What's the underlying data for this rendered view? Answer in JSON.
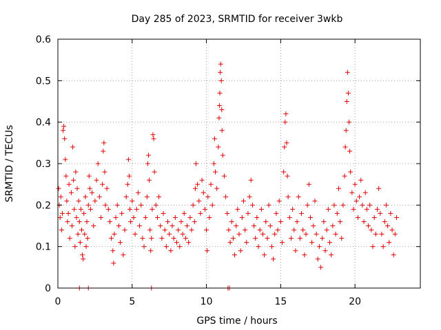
{
  "chart_data": {
    "type": "scatter",
    "title": "Day 285 of 2023, SRMTID for receiver 3wkb",
    "xlabel": "GPS time / hours",
    "ylabel": "SRMTID / TECUs",
    "xlim": [
      0,
      24.4
    ],
    "ylim": [
      0,
      0.6
    ],
    "xticks": [
      0,
      5,
      10,
      15,
      20
    ],
    "xtick_labels": [
      "0",
      "5",
      "10",
      "15",
      "20"
    ],
    "yticks": [
      0,
      0.1,
      0.2,
      0.3,
      0.4,
      0.5,
      0.6
    ],
    "ytick_labels": [
      "0",
      "0.1",
      "0.2",
      "0.3",
      "0.4",
      "0.5",
      "0.6"
    ],
    "grid": true,
    "marker": "+",
    "color": "#e00000",
    "series": [
      {
        "name": "SRMTID",
        "points": [
          [
            0.05,
            0.24
          ],
          [
            0.1,
            0.2
          ],
          [
            0.15,
            0.17
          ],
          [
            0.2,
            0.22
          ],
          [
            0.25,
            0.14
          ],
          [
            0.3,
            0.18
          ],
          [
            0.35,
            0.38
          ],
          [
            0.4,
            0.39
          ],
          [
            0.45,
            0.36
          ],
          [
            0.5,
            0.31
          ],
          [
            0.55,
            0.27
          ],
          [
            0.6,
            0.21
          ],
          [
            0.65,
            0.16
          ],
          [
            0.7,
            0.18
          ],
          [
            0.75,
            0.25
          ],
          [
            0.8,
            0.12
          ],
          [
            0.9,
            0.23
          ],
          [
            0.95,
            0.15
          ],
          [
            1.0,
            0.34
          ],
          [
            1.05,
            0.26
          ],
          [
            1.1,
            0.19
          ],
          [
            1.15,
            0.1
          ],
          [
            1.2,
            0.28
          ],
          [
            1.25,
            0.17
          ],
          [
            1.3,
            0.24
          ],
          [
            1.35,
            0.13
          ],
          [
            1.4,
            0.21
          ],
          [
            1.45,
            0.16
          ],
          [
            1.5,
            0.11
          ],
          [
            1.55,
            0.19
          ],
          [
            1.6,
            0.14
          ],
          [
            1.65,
            0.08
          ],
          [
            1.7,
            0.07
          ],
          [
            1.75,
            0.18
          ],
          [
            1.8,
            0.13
          ],
          [
            1.85,
            0.22
          ],
          [
            1.9,
            0.1
          ],
          [
            1.95,
            0.16
          ],
          [
            2.0,
            0.12
          ],
          [
            2.05,
            0.2
          ],
          [
            2.1,
            0.27
          ],
          [
            2.15,
            0.24
          ],
          [
            2.2,
            0.19
          ],
          [
            2.3,
            0.23
          ],
          [
            2.4,
            0.15
          ],
          [
            2.5,
            0.21
          ],
          [
            2.6,
            0.26
          ],
          [
            2.7,
            0.3
          ],
          [
            2.8,
            0.22
          ],
          [
            2.9,
            0.17
          ],
          [
            3.0,
            0.25
          ],
          [
            3.05,
            0.33
          ],
          [
            3.1,
            0.35
          ],
          [
            3.15,
            0.28
          ],
          [
            3.2,
            0.2
          ],
          [
            3.3,
            0.24
          ],
          [
            3.4,
            0.19
          ],
          [
            3.5,
            0.16
          ],
          [
            3.6,
            0.12
          ],
          [
            3.7,
            0.09
          ],
          [
            3.75,
            0.06
          ],
          [
            3.8,
            0.13
          ],
          [
            3.9,
            0.17
          ],
          [
            4.0,
            0.2
          ],
          [
            4.1,
            0.15
          ],
          [
            4.2,
            0.11
          ],
          [
            4.3,
            0.18
          ],
          [
            4.4,
            0.08
          ],
          [
            4.5,
            0.14
          ],
          [
            4.6,
            0.22
          ],
          [
            4.7,
            0.25
          ],
          [
            4.75,
            0.31
          ],
          [
            4.8,
            0.27
          ],
          [
            4.85,
            0.19
          ],
          [
            4.9,
            0.16
          ],
          [
            5.0,
            0.21
          ],
          [
            5.1,
            0.17
          ],
          [
            5.2,
            0.13
          ],
          [
            5.3,
            0.19
          ],
          [
            5.4,
            0.23
          ],
          [
            5.5,
            0.15
          ],
          [
            5.6,
            0.2
          ],
          [
            5.7,
            0.12
          ],
          [
            5.8,
            0.1
          ],
          [
            5.9,
            0.17
          ],
          [
            6.0,
            0.22
          ],
          [
            6.05,
            0.3
          ],
          [
            6.1,
            0.32
          ],
          [
            6.15,
            0.26
          ],
          [
            6.2,
            0.14
          ],
          [
            6.25,
            0.09
          ],
          [
            6.3,
            0.12
          ],
          [
            6.35,
            0.19
          ],
          [
            6.4,
            0.37
          ],
          [
            6.45,
            0.36
          ],
          [
            6.5,
            0.28
          ],
          [
            6.6,
            0.2
          ],
          [
            6.7,
            0.17
          ],
          [
            6.8,
            0.22
          ],
          [
            6.9,
            0.15
          ],
          [
            7.0,
            0.12
          ],
          [
            7.1,
            0.18
          ],
          [
            7.2,
            0.14
          ],
          [
            7.3,
            0.1
          ],
          [
            7.4,
            0.16
          ],
          [
            7.5,
            0.13
          ],
          [
            7.6,
            0.09
          ],
          [
            7.7,
            0.15
          ],
          [
            7.8,
            0.12
          ],
          [
            7.9,
            0.17
          ],
          [
            8.0,
            0.11
          ],
          [
            8.1,
            0.14
          ],
          [
            8.2,
            0.1
          ],
          [
            8.3,
            0.16
          ],
          [
            8.4,
            0.13
          ],
          [
            8.5,
            0.18
          ],
          [
            8.6,
            0.12
          ],
          [
            8.7,
            0.15
          ],
          [
            8.8,
            0.11
          ],
          [
            8.9,
            0.17
          ],
          [
            9.0,
            0.14
          ],
          [
            9.1,
            0.2
          ],
          [
            9.2,
            0.16
          ],
          [
            9.25,
            0.24
          ],
          [
            9.3,
            0.3
          ],
          [
            9.4,
            0.25
          ],
          [
            9.5,
            0.21
          ],
          [
            9.6,
            0.18
          ],
          [
            9.7,
            0.26
          ],
          [
            9.8,
            0.23
          ],
          [
            9.9,
            0.19
          ],
          [
            10.0,
            0.14
          ],
          [
            10.05,
            0.09
          ],
          [
            10.1,
            0.22
          ],
          [
            10.2,
            0.17
          ],
          [
            10.3,
            0.25
          ],
          [
            10.4,
            0.2
          ],
          [
            10.5,
            0.3
          ],
          [
            10.55,
            0.36
          ],
          [
            10.6,
            0.28
          ],
          [
            10.7,
            0.24
          ],
          [
            10.8,
            0.34
          ],
          [
            10.85,
            0.41
          ],
          [
            10.88,
            0.44
          ],
          [
            10.9,
            0.47
          ],
          [
            10.93,
            0.52
          ],
          [
            10.96,
            0.54
          ],
          [
            11.0,
            0.5
          ],
          [
            11.03,
            0.43
          ],
          [
            11.05,
            0.38
          ],
          [
            11.1,
            0.32
          ],
          [
            11.2,
            0.27
          ],
          [
            11.3,
            0.22
          ],
          [
            11.4,
            0.18
          ],
          [
            11.5,
            0.14
          ],
          [
            11.6,
            0.11
          ],
          [
            11.7,
            0.16
          ],
          [
            11.8,
            0.12
          ],
          [
            11.9,
            0.08
          ],
          [
            12.0,
            0.15
          ],
          [
            12.1,
            0.19
          ],
          [
            12.2,
            0.13
          ],
          [
            12.3,
            0.09
          ],
          [
            12.4,
            0.17
          ],
          [
            12.5,
            0.21
          ],
          [
            12.6,
            0.14
          ],
          [
            12.7,
            0.11
          ],
          [
            12.8,
            0.18
          ],
          [
            12.9,
            0.22
          ],
          [
            13.0,
            0.26
          ],
          [
            13.1,
            0.2
          ],
          [
            13.2,
            0.15
          ],
          [
            13.3,
            0.12
          ],
          [
            13.4,
            0.17
          ],
          [
            13.5,
            0.1
          ],
          [
            13.6,
            0.14
          ],
          [
            13.7,
            0.19
          ],
          [
            13.8,
            0.13
          ],
          [
            13.9,
            0.08
          ],
          [
            14.0,
            0.16
          ],
          [
            14.1,
            0.12
          ],
          [
            14.2,
            0.2
          ],
          [
            14.3,
            0.15
          ],
          [
            14.4,
            0.1
          ],
          [
            14.5,
            0.07
          ],
          [
            14.6,
            0.13
          ],
          [
            14.7,
            0.18
          ],
          [
            14.8,
            0.14
          ],
          [
            14.9,
            0.21
          ],
          [
            15.0,
            0.16
          ],
          [
            15.1,
            0.11
          ],
          [
            15.2,
            0.28
          ],
          [
            15.25,
            0.34
          ],
          [
            15.3,
            0.4
          ],
          [
            15.35,
            0.42
          ],
          [
            15.4,
            0.35
          ],
          [
            15.45,
            0.27
          ],
          [
            15.5,
            0.22
          ],
          [
            15.6,
            0.17
          ],
          [
            15.7,
            0.12
          ],
          [
            15.8,
            0.19
          ],
          [
            15.9,
            0.14
          ],
          [
            16.0,
            0.09
          ],
          [
            16.1,
            0.16
          ],
          [
            16.2,
            0.22
          ],
          [
            16.3,
            0.12
          ],
          [
            16.4,
            0.18
          ],
          [
            16.5,
            0.14
          ],
          [
            16.6,
            0.08
          ],
          [
            16.7,
            0.13
          ],
          [
            16.8,
            0.2
          ],
          [
            16.9,
            0.25
          ],
          [
            17.0,
            0.17
          ],
          [
            17.1,
            0.11
          ],
          [
            17.2,
            0.15
          ],
          [
            17.3,
            0.21
          ],
          [
            17.4,
            0.13
          ],
          [
            17.5,
            0.07
          ],
          [
            17.6,
            0.1
          ],
          [
            17.7,
            0.05
          ],
          [
            17.8,
            0.12
          ],
          [
            17.9,
            0.16
          ],
          [
            18.0,
            0.09
          ],
          [
            18.1,
            0.14
          ],
          [
            18.2,
            0.19
          ],
          [
            18.3,
            0.11
          ],
          [
            18.4,
            0.08
          ],
          [
            18.5,
            0.15
          ],
          [
            18.6,
            0.2
          ],
          [
            18.7,
            0.13
          ],
          [
            18.8,
            0.18
          ],
          [
            18.9,
            0.24
          ],
          [
            19.0,
            0.16
          ],
          [
            19.1,
            0.12
          ],
          [
            19.2,
            0.2
          ],
          [
            19.3,
            0.27
          ],
          [
            19.35,
            0.34
          ],
          [
            19.4,
            0.38
          ],
          [
            19.45,
            0.45
          ],
          [
            19.5,
            0.52
          ],
          [
            19.55,
            0.47
          ],
          [
            19.6,
            0.4
          ],
          [
            19.65,
            0.33
          ],
          [
            19.7,
            0.28
          ],
          [
            19.8,
            0.23
          ],
          [
            19.9,
            0.19
          ],
          [
            20.0,
            0.25
          ],
          [
            20.1,
            0.21
          ],
          [
            20.2,
            0.17
          ],
          [
            20.3,
            0.22
          ],
          [
            20.4,
            0.26
          ],
          [
            20.5,
            0.2
          ],
          [
            20.6,
            0.16
          ],
          [
            20.7,
            0.23
          ],
          [
            20.8,
            0.19
          ],
          [
            20.9,
            0.15
          ],
          [
            21.0,
            0.2
          ],
          [
            21.1,
            0.14
          ],
          [
            21.2,
            0.1
          ],
          [
            21.3,
            0.17
          ],
          [
            21.4,
            0.13
          ],
          [
            21.5,
            0.19
          ],
          [
            21.6,
            0.24
          ],
          [
            21.7,
            0.18
          ],
          [
            21.8,
            0.13
          ],
          [
            21.9,
            0.1
          ],
          [
            22.0,
            0.16
          ],
          [
            22.1,
            0.2
          ],
          [
            22.2,
            0.15
          ],
          [
            22.3,
            0.11
          ],
          [
            22.4,
            0.18
          ],
          [
            22.5,
            0.14
          ],
          [
            22.6,
            0.08
          ],
          [
            22.7,
            0.13
          ],
          [
            22.8,
            0.17
          ]
        ]
      }
    ],
    "zero_markers": [
      1.45,
      2.05,
      6.3,
      11.45,
      11.55
    ]
  }
}
